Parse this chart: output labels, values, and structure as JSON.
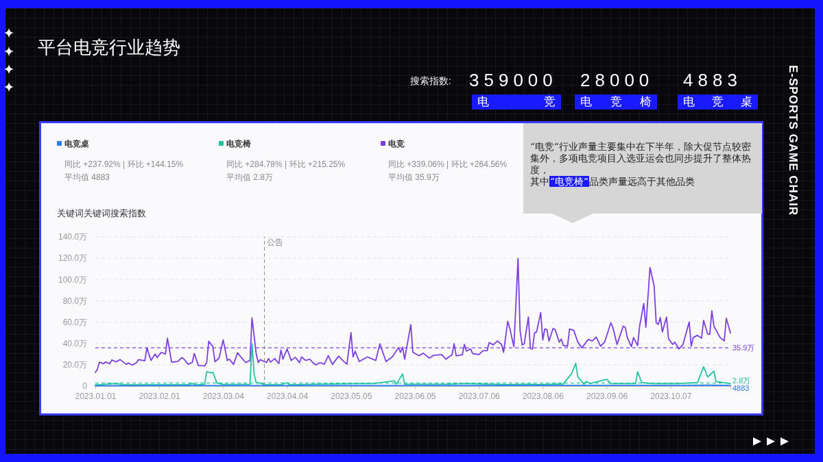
{
  "chart_data": {
    "type": "line",
    "title": "平台电竞行业趋势",
    "ylabel": "关键词关键词搜索指数",
    "xlim": [
      "2023-01-01",
      "2023-11-05"
    ],
    "xticks": [
      {
        "value": "2023-01-01",
        "label": "2023.01.01"
      },
      {
        "value": "2023-02-01",
        "label": "2023.02.01"
      },
      {
        "value": "2023-03-04",
        "label": "2023.03.04"
      },
      {
        "value": "2023-04-04",
        "label": "2023.04.04"
      },
      {
        "value": "2023-05-05",
        "label": "2023.05.05"
      },
      {
        "value": "2023-06-05",
        "label": "2023.06.05"
      },
      {
        "value": "2023-07-06",
        "label": "2023.07.06"
      },
      {
        "value": "2023-08-06",
        "label": "2023.08.06"
      },
      {
        "value": "2023-09-06",
        "label": "2023.09.06"
      },
      {
        "value": "2023-10-07",
        "label": "2023.10.07"
      }
    ],
    "ylim": [
      0,
      140
    ],
    "yticks": [
      0,
      {
        "value": 20,
        "label": "20.0万"
      },
      {
        "value": 40,
        "label": "40.0万"
      },
      {
        "value": 60,
        "label": "60.0万"
      },
      {
        "value": 80,
        "label": "80.0万"
      },
      {
        "value": 100,
        "label": "100.0万"
      },
      {
        "value": 120,
        "label": "120.0万"
      },
      {
        "value": 140,
        "label": "140.0万"
      }
    ],
    "grid": "y",
    "legend": "top left",
    "series": [
      {
        "name": "电竞桌",
        "color": "#2b7de9",
        "x": [
          "2023-01-01",
          "2023-03-01",
          "2023-05-01",
          "2023-07-01",
          "2023-08-20",
          "2023-09-25",
          "2023-10-25",
          "2023-11-05"
        ],
        "values": [
          0.3,
          0.4,
          0.4,
          0.4,
          0.6,
          0.6,
          0.8,
          0.5
        ]
      },
      {
        "name": "电竞椅",
        "color": "#22c3a0",
        "x": [
          "2023-01-01",
          "2023-01-11",
          "2023-01-15",
          "2023-02-15",
          "2023-02-17",
          "2023-02-19",
          "2023-02-23",
          "2023-02-24",
          "2023-02-26",
          "2023-02-27",
          "2023-03-01",
          "2023-03-04",
          "2023-03-17",
          "2023-03-18",
          "2023-03-19",
          "2023-03-20",
          "2023-03-22",
          "2023-03-24",
          "2023-04-01",
          "2023-04-04",
          "2023-04-05",
          "2023-04-17",
          "2023-05-11",
          "2023-05-16",
          "2023-05-26",
          "2023-05-27",
          "2023-05-30",
          "2023-05-31",
          "2023-06-20",
          "2023-06-30",
          "2023-07-20",
          "2023-07-30",
          "2023-08-04",
          "2023-08-16",
          "2023-08-19",
          "2023-08-20",
          "2023-08-22",
          "2023-08-23",
          "2023-08-26",
          "2023-08-27",
          "2023-08-29",
          "2023-09-06",
          "2023-09-08",
          "2023-09-20",
          "2023-09-21",
          "2023-09-23",
          "2023-09-29",
          "2023-10-10",
          "2023-10-20",
          "2023-10-23",
          "2023-10-25",
          "2023-10-28",
          "2023-10-29",
          "2023-11-05"
        ],
        "values": [
          1.0,
          2.3,
          1.2,
          1.2,
          2.3,
          1.0,
          1.7,
          13.4,
          12.4,
          12.8,
          2.8,
          1.5,
          1.7,
          39.5,
          11.3,
          3.2,
          2.8,
          1.2,
          1.2,
          3.2,
          1.2,
          1.7,
          2.3,
          2.3,
          4.9,
          1.7,
          11.3,
          1.7,
          1.7,
          2.3,
          1.3,
          1.7,
          1.3,
          2.0,
          9.2,
          11.7,
          21.3,
          8.5,
          1.7,
          4.3,
          2.3,
          6.4,
          2.3,
          2.3,
          13.4,
          3.2,
          2.3,
          2.3,
          3.2,
          18.1,
          8.5,
          14.1,
          4.3,
          2.3
        ]
      },
      {
        "name": "电竞",
        "color": "#7b3fe0",
        "x": [
          "2023-01-01",
          "2023-01-02",
          "2023-01-03",
          "2023-01-05",
          "2023-01-06",
          "2023-01-08",
          "2023-01-09",
          "2023-01-11",
          "2023-01-13",
          "2023-01-16",
          "2023-01-17",
          "2023-01-19",
          "2023-01-21",
          "2023-01-22",
          "2023-01-25",
          "2023-01-26",
          "2023-01-28",
          "2023-01-30",
          "2023-01-31",
          "2023-02-02",
          "2023-02-04",
          "2023-02-05",
          "2023-02-07",
          "2023-02-10",
          "2023-02-12",
          "2023-02-13",
          "2023-02-15",
          "2023-02-17",
          "2023-02-18",
          "2023-02-20",
          "2023-02-23",
          "2023-02-24",
          "2023-02-25",
          "2023-02-27",
          "2023-02-28",
          "2023-03-02",
          "2023-03-04",
          "2023-03-06",
          "2023-03-07",
          "2023-03-09",
          "2023-03-11",
          "2023-03-13",
          "2023-03-15",
          "2023-03-17",
          "2023-03-18",
          "2023-03-20",
          "2023-03-21",
          "2023-03-22",
          "2023-03-25",
          "2023-03-26",
          "2023-03-27",
          "2023-03-29",
          "2023-03-31",
          "2023-04-01",
          "2023-04-02",
          "2023-04-04",
          "2023-04-06",
          "2023-04-08",
          "2023-04-10",
          "2023-04-11",
          "2023-04-13",
          "2023-04-15",
          "2023-04-17",
          "2023-04-18",
          "2023-04-20",
          "2023-04-22",
          "2023-04-24",
          "2023-04-26",
          "2023-04-29",
          "2023-05-01",
          "2023-05-03",
          "2023-05-05",
          "2023-05-06",
          "2023-05-07",
          "2023-05-09",
          "2023-05-11",
          "2023-05-13",
          "2023-05-17",
          "2023-05-19",
          "2023-05-22",
          "2023-05-25",
          "2023-05-28",
          "2023-05-29",
          "2023-05-30",
          "2023-05-31",
          "2023-06-03",
          "2023-06-04",
          "2023-06-07",
          "2023-06-09",
          "2023-06-12",
          "2023-06-14",
          "2023-06-18",
          "2023-06-20",
          "2023-06-23",
          "2023-06-24",
          "2023-06-25",
          "2023-06-28",
          "2023-06-29",
          "2023-06-30",
          "2023-07-02",
          "2023-07-03",
          "2023-07-06",
          "2023-07-08",
          "2023-07-10",
          "2023-07-11",
          "2023-07-13",
          "2023-07-15",
          "2023-07-17",
          "2023-07-18",
          "2023-07-20",
          "2023-07-21",
          "2023-07-23",
          "2023-07-25",
          "2023-07-26",
          "2023-07-27",
          "2023-07-28",
          "2023-07-30",
          "2023-07-31",
          "2023-08-01",
          "2023-08-02",
          "2023-08-03",
          "2023-08-05",
          "2023-08-06",
          "2023-08-07",
          "2023-08-08",
          "2023-08-09",
          "2023-08-11",
          "2023-08-12",
          "2023-08-14",
          "2023-08-15",
          "2023-08-16",
          "2023-08-18",
          "2023-08-19",
          "2023-08-21",
          "2023-08-23",
          "2023-08-25",
          "2023-08-28",
          "2023-08-30",
          "2023-09-01",
          "2023-09-03",
          "2023-09-05",
          "2023-09-08",
          "2023-09-09",
          "2023-09-11",
          "2023-09-14",
          "2023-09-15",
          "2023-09-16",
          "2023-09-18",
          "2023-09-19",
          "2023-09-21",
          "2023-09-22",
          "2023-09-24",
          "2023-09-25",
          "2023-09-27",
          "2023-09-29",
          "2023-09-30",
          "2023-10-01",
          "2023-10-02",
          "2023-10-03",
          "2023-10-05",
          "2023-10-06",
          "2023-10-08",
          "2023-10-09",
          "2023-10-11",
          "2023-10-13",
          "2023-10-16",
          "2023-10-17",
          "2023-10-18",
          "2023-10-20",
          "2023-10-22",
          "2023-10-23",
          "2023-10-25",
          "2023-10-26",
          "2023-10-27",
          "2023-10-28",
          "2023-10-31",
          "2023-11-02",
          "2023-11-03",
          "2023-11-05"
        ],
        "values": [
          12.8,
          15.6,
          22.4,
          21,
          22.6,
          21,
          24.5,
          22.6,
          24.8,
          20.3,
          21.6,
          19.6,
          22,
          24.8,
          23.7,
          35.9,
          24,
          30,
          26.7,
          31.6,
          30,
          44.8,
          22.4,
          23,
          26.7,
          25.2,
          20.5,
          22,
          30.5,
          19.2,
          18.8,
          22,
          42,
          36.9,
          22.8,
          26.2,
          43.3,
          24,
          25.2,
          20.3,
          31.2,
          26.2,
          22,
          24,
          64,
          30.5,
          22,
          24.8,
          22,
          25.8,
          22.4,
          25.8,
          21,
          33.7,
          25.2,
          34.8,
          24,
          26.9,
          22,
          27.3,
          24,
          25.2,
          21,
          19.8,
          22,
          20.5,
          28.4,
          20.3,
          28,
          24,
          20.5,
          50.1,
          27.3,
          32.7,
          23,
          25.2,
          27.3,
          24,
          39.5,
          23,
          27.3,
          35.9,
          31.6,
          36.5,
          25.2,
          57.6,
          31.6,
          28.4,
          30.9,
          26.2,
          28.8,
          29.4,
          25.2,
          29.4,
          39.7,
          28.4,
          29.4,
          39,
          32.7,
          34.8,
          30.5,
          29.4,
          33.1,
          33.1,
          40.8,
          38.6,
          42.3,
          39,
          31.6,
          60.8,
          54,
          36.9,
          119.7,
          51.9,
          38.6,
          39.5,
          64.7,
          35.2,
          34.8,
          49.7,
          50.8,
          68.9,
          43.3,
          53.6,
          52.9,
          42.3,
          54,
          52.9,
          41.2,
          44,
          38,
          37.4,
          53.6,
          52.3,
          41.2,
          35.9,
          43.7,
          42.3,
          45.9,
          37.4,
          41.2,
          59.3,
          55.1,
          39,
          56.1,
          55.1,
          45.5,
          36.9,
          45.5,
          38,
          56.6,
          77.5,
          55.1,
          111.2,
          94.1,
          59.3,
          57.8,
          64.2,
          50.8,
          64.7,
          44.4,
          39,
          41.2,
          34.8,
          39,
          60,
          37.4,
          45.5,
          47.6,
          45,
          61.5,
          48.7,
          48.7,
          70.6,
          56.1,
          45.5,
          42.3,
          63.6,
          49.7
        ]
      }
    ],
    "ref_lines": [
      {
        "axis": "y",
        "value": 35.9,
        "label": "35.9万",
        "color": "#7b3fe0",
        "line_style": "dashed"
      },
      {
        "axis": "y",
        "value": 2.8,
        "label": "2.8万",
        "color": "#22c3a0",
        "line_style": "dashed"
      },
      {
        "axis": "y",
        "value": 0.4883,
        "color": "#2b7de9",
        "line_style": "dashed"
      },
      {
        "axis": "x",
        "value": "2023-03-24",
        "label": "公告",
        "color": "#888888",
        "line_style": "dashed"
      }
    ],
    "annotations": [
      "搜索指数:",
      "359000",
      "28000",
      "4883",
      "电竞",
      "电竞椅",
      "电竞桌",
      "同比 +237.92% | 环比 +144.15%",
      "平均值 4883",
      "同比 +284.78% | 环比 +215.25%",
      "平均值 2.8万",
      "同比 +339.06% | 环比 +264.56%",
      "平均值 35.9万",
      "“电竞”行业声量主要集中在下半年，除大促节点较密集外，多项电竞项目入选亚运会也同步提升了整体热度，",
      "其中",
      "“电竞椅”",
      "品类声量远高于其他品类",
      "E-SPORTS GAME CHAIR",
      {
        "text": "4883",
        "x": "2023-11-05",
        "y": 0.4883
      }
    ]
  }
}
